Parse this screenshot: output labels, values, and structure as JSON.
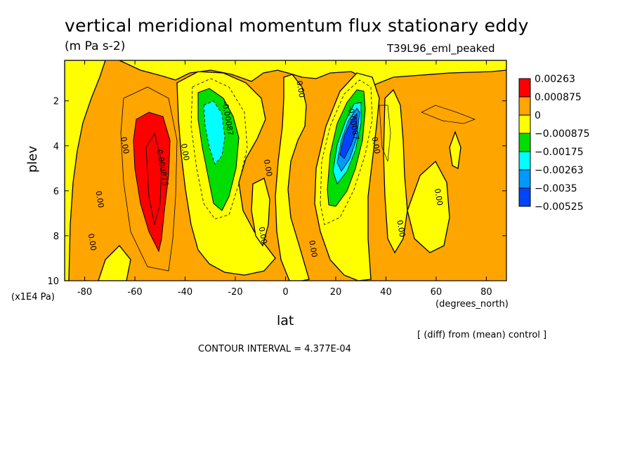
{
  "title": "vertical meridional momentum flux stationary eddy",
  "units": "(m Pa s-2)",
  "run_label": "T39L96_eml_peaked",
  "footer_diff": "[ (diff) from (mean) control ]",
  "contour_interval": "CONTOUR INTERVAL = 4.377E-04",
  "colors": {
    "red": "#ff0000",
    "orange": "#ffa500",
    "yellow": "#ffff00",
    "green": "#00dd00",
    "cyan": "#00ffff",
    "lightblue": "#0099ff",
    "blue": "#0044ff"
  },
  "chart_data": {
    "type": "contour",
    "xlabel": "lat",
    "xunit": "(degrees_north)",
    "ylabel": "plev",
    "yunit": "(x1E4 Pa)",
    "xlim": [
      -88,
      88
    ],
    "ylim": [
      10,
      0.2
    ],
    "y_inverted": true,
    "xticks": [
      "-80",
      "-60",
      "-40",
      "-20",
      "0",
      "20",
      "40",
      "60",
      "80"
    ],
    "xtick_values": [
      -80,
      -60,
      -40,
      -20,
      0,
      20,
      40,
      60,
      80
    ],
    "yticks": [
      "2",
      "4",
      "6",
      "8",
      "10"
    ],
    "ytick_values": [
      2,
      4,
      6,
      8,
      10
    ],
    "colorbar": {
      "levels": [
        "0.00263",
        "0.000875",
        "0",
        "-0.000875",
        "-0.00175",
        "-0.00263",
        "-0.0035",
        "-0.00525"
      ],
      "colors": [
        "#ff0000",
        "#ffa500",
        "#ffff00",
        "#00dd00",
        "#00ffff",
        "#0099ff",
        "#0044ff"
      ]
    },
    "contour_labels": [
      {
        "text": "0.000875",
        "lat": -50,
        "plev": 5.0
      },
      {
        "text": "0.00",
        "lat": -65,
        "plev": 4.0
      },
      {
        "text": "0.00",
        "lat": -75,
        "plev": 6.4
      },
      {
        "text": "0.00",
        "lat": -78,
        "plev": 8.3
      },
      {
        "text": "0.00",
        "lat": -41,
        "plev": 4.3
      },
      {
        "text": "-0.00087",
        "lat": -24,
        "plev": 2.8
      },
      {
        "text": "0.00",
        "lat": -8,
        "plev": 5.0
      },
      {
        "text": "0.00",
        "lat": -10,
        "plev": 8.0
      },
      {
        "text": "0.00",
        "lat": 5,
        "plev": 1.5
      },
      {
        "text": "0.00",
        "lat": 10,
        "plev": 8.6
      },
      {
        "text": "-0.00087",
        "lat": 26,
        "plev": 3.0
      },
      {
        "text": "0.00",
        "lat": 35,
        "plev": 4.0
      },
      {
        "text": "0.00",
        "lat": 60,
        "plev": 6.3
      },
      {
        "text": "0.00",
        "lat": 45,
        "plev": 7.7
      }
    ]
  }
}
